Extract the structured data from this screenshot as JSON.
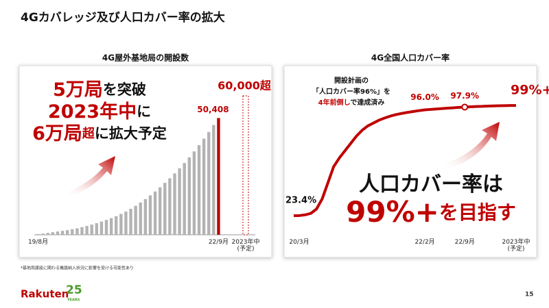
{
  "title": "4Gカバレッジ及び人口カバー率の拡大",
  "chart_data": [
    {
      "type": "bar",
      "title": "4G屋外基地局の開設数",
      "categories": [
        "19/8月",
        null,
        null,
        null,
        null,
        null,
        null,
        null,
        null,
        null,
        null,
        null,
        null,
        null,
        null,
        null,
        null,
        null,
        null,
        null,
        null,
        null,
        null,
        null,
        null,
        null,
        null,
        null,
        null,
        null,
        null,
        null,
        null,
        null,
        null,
        null,
        null,
        "22/9月",
        "2023年中\n(予定)"
      ],
      "values": [
        300,
        500,
        800,
        1100,
        1400,
        1700,
        2000,
        2400,
        2800,
        3300,
        3800,
        4400,
        5000,
        5700,
        6400,
        7200,
        8000,
        9000,
        10000,
        11200,
        12500,
        13900,
        15400,
        17000,
        18700,
        20500,
        22400,
        24400,
        26500,
        28700,
        31000,
        33400,
        36000,
        38700,
        41500,
        44400,
        47400,
        50408,
        60000
      ],
      "value_labels": [
        null,
        null,
        null,
        null,
        null,
        null,
        null,
        null,
        null,
        null,
        null,
        null,
        null,
        null,
        null,
        null,
        null,
        null,
        null,
        null,
        null,
        null,
        null,
        null,
        null,
        null,
        null,
        null,
        null,
        null,
        null,
        null,
        null,
        null,
        null,
        null,
        null,
        "50,408",
        "60,000超"
      ],
      "colors": [
        "#b3b3b3",
        "#b3b3b3",
        "#b3b3b3",
        "#b3b3b3",
        "#b3b3b3",
        "#b3b3b3",
        "#b3b3b3",
        "#b3b3b3",
        "#b3b3b3",
        "#b3b3b3",
        "#b3b3b3",
        "#b3b3b3",
        "#b3b3b3",
        "#b3b3b3",
        "#b3b3b3",
        "#b3b3b3",
        "#b3b3b3",
        "#b3b3b3",
        "#b3b3b3",
        "#b3b3b3",
        "#b3b3b3",
        "#b3b3b3",
        "#b3b3b3",
        "#b3b3b3",
        "#b3b3b3",
        "#b3b3b3",
        "#b3b3b3",
        "#b3b3b3",
        "#b3b3b3",
        "#b3b3b3",
        "#b3b3b3",
        "#b3b3b3",
        "#b3b3b3",
        "#b3b3b3",
        "#b3b3b3",
        "#b3b3b3",
        "#b3b3b3",
        "#bf0000",
        "#bf0000"
      ],
      "dashed_last": true,
      "ylim": [
        0,
        60000
      ],
      "annotations": [
        [
          {
            "text": "5万局",
            "color": "#bf0000"
          },
          {
            "text": "を突破",
            "color": "#111111"
          }
        ],
        [
          {
            "text": "2023年中",
            "color": "#bf0000"
          },
          {
            "text": "に",
            "color": "#111111"
          }
        ],
        [
          {
            "text": "6万局",
            "color": "#bf0000"
          },
          {
            "text": "超",
            "color": "#bf0000"
          },
          {
            "text": "に拡大予定",
            "color": "#111111"
          }
        ]
      ]
    },
    {
      "type": "line",
      "title": "4G全国人口カバー率",
      "categories": [
        "20/3月",
        null,
        null,
        null,
        null,
        null,
        null,
        null,
        null,
        null,
        null,
        null,
        null,
        null,
        null,
        null,
        null,
        null,
        null,
        null,
        null,
        null,
        null,
        "22/2月",
        null,
        null,
        null,
        null,
        null,
        null,
        "22/9月",
        null,
        null,
        null,
        null,
        null,
        null,
        null,
        null,
        "2023年中\n(予定)"
      ],
      "values": [
        23.4,
        23.5,
        24,
        25,
        28,
        35,
        46,
        57,
        63,
        68,
        73,
        78,
        82,
        85,
        87,
        89,
        90.5,
        91.8,
        92.8,
        93.6,
        94.3,
        94.9,
        95.5,
        96.0,
        96.3,
        96.6,
        96.9,
        97.2,
        97.4,
        97.7,
        97.9,
        98.1,
        98.3,
        98.4,
        98.6,
        98.7,
        98.8,
        98.9,
        99,
        99
      ],
      "value_labels": [
        "23.4%",
        null,
        null,
        null,
        null,
        null,
        null,
        null,
        null,
        null,
        null,
        null,
        null,
        null,
        null,
        null,
        null,
        null,
        null,
        null,
        null,
        null,
        null,
        "96.0%",
        null,
        null,
        null,
        null,
        null,
        null,
        "97.9%",
        null,
        null,
        null,
        null,
        null,
        null,
        null,
        null,
        "99%+"
      ],
      "color": "#bf0000",
      "ylim": [
        0,
        100
      ],
      "note": [
        [
          {
            "text": "開設計画の",
            "color": "#111111"
          }
        ],
        [
          {
            "text": "「人口カバー率96%」を",
            "color": "#111111"
          }
        ],
        [
          {
            "text": "4年前倒し",
            "color": "#bf0000"
          },
          {
            "text": "で達成済み",
            "color": "#111111"
          }
        ]
      ],
      "annotations": [
        [
          {
            "text": "人口カバー率は",
            "color": "#111111"
          }
        ],
        [
          {
            "text": "99%+",
            "color": "#bf0000"
          },
          {
            "text": "を目指す",
            "color": "#bf0000"
          }
        ]
      ]
    }
  ],
  "footnote": "*基地局建設に関わる機器納入状況に影響を受ける可能性あり",
  "logo": {
    "brand": "Rakuten",
    "number": "25",
    "sub": "YEARS"
  },
  "page_number": "15"
}
